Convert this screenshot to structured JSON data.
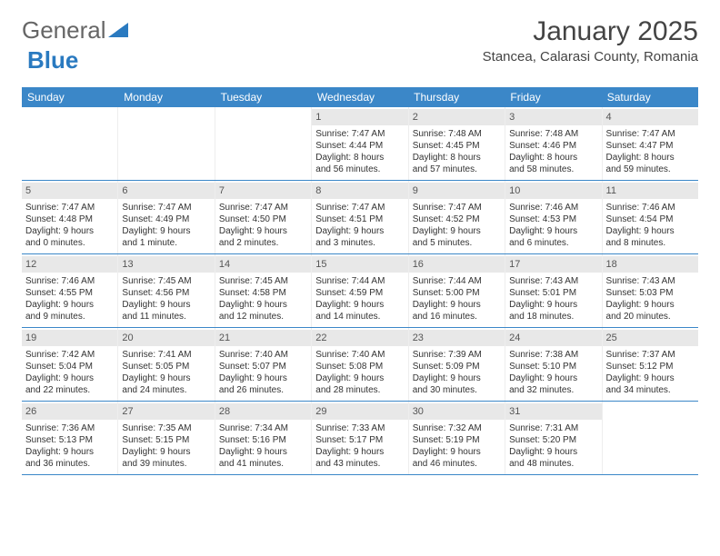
{
  "logo": {
    "text1": "General",
    "text2": "Blue"
  },
  "title": {
    "month": "January 2025",
    "location": "Stancea, Calarasi County, Romania"
  },
  "colors": {
    "header_bg": "#3b87c8",
    "header_text": "#ffffff",
    "date_bg": "#e8e8e8",
    "border": "#3b87c8",
    "logo_blue": "#2a7ac0"
  },
  "day_names": [
    "Sunday",
    "Monday",
    "Tuesday",
    "Wednesday",
    "Thursday",
    "Friday",
    "Saturday"
  ],
  "weeks": [
    [
      {
        "date": "",
        "sunrise": "",
        "sunset": "",
        "daylight1": "",
        "daylight2": ""
      },
      {
        "date": "",
        "sunrise": "",
        "sunset": "",
        "daylight1": "",
        "daylight2": ""
      },
      {
        "date": "",
        "sunrise": "",
        "sunset": "",
        "daylight1": "",
        "daylight2": ""
      },
      {
        "date": "1",
        "sunrise": "Sunrise: 7:47 AM",
        "sunset": "Sunset: 4:44 PM",
        "daylight1": "Daylight: 8 hours",
        "daylight2": "and 56 minutes."
      },
      {
        "date": "2",
        "sunrise": "Sunrise: 7:48 AM",
        "sunset": "Sunset: 4:45 PM",
        "daylight1": "Daylight: 8 hours",
        "daylight2": "and 57 minutes."
      },
      {
        "date": "3",
        "sunrise": "Sunrise: 7:48 AM",
        "sunset": "Sunset: 4:46 PM",
        "daylight1": "Daylight: 8 hours",
        "daylight2": "and 58 minutes."
      },
      {
        "date": "4",
        "sunrise": "Sunrise: 7:47 AM",
        "sunset": "Sunset: 4:47 PM",
        "daylight1": "Daylight: 8 hours",
        "daylight2": "and 59 minutes."
      }
    ],
    [
      {
        "date": "5",
        "sunrise": "Sunrise: 7:47 AM",
        "sunset": "Sunset: 4:48 PM",
        "daylight1": "Daylight: 9 hours",
        "daylight2": "and 0 minutes."
      },
      {
        "date": "6",
        "sunrise": "Sunrise: 7:47 AM",
        "sunset": "Sunset: 4:49 PM",
        "daylight1": "Daylight: 9 hours",
        "daylight2": "and 1 minute."
      },
      {
        "date": "7",
        "sunrise": "Sunrise: 7:47 AM",
        "sunset": "Sunset: 4:50 PM",
        "daylight1": "Daylight: 9 hours",
        "daylight2": "and 2 minutes."
      },
      {
        "date": "8",
        "sunrise": "Sunrise: 7:47 AM",
        "sunset": "Sunset: 4:51 PM",
        "daylight1": "Daylight: 9 hours",
        "daylight2": "and 3 minutes."
      },
      {
        "date": "9",
        "sunrise": "Sunrise: 7:47 AM",
        "sunset": "Sunset: 4:52 PM",
        "daylight1": "Daylight: 9 hours",
        "daylight2": "and 5 minutes."
      },
      {
        "date": "10",
        "sunrise": "Sunrise: 7:46 AM",
        "sunset": "Sunset: 4:53 PM",
        "daylight1": "Daylight: 9 hours",
        "daylight2": "and 6 minutes."
      },
      {
        "date": "11",
        "sunrise": "Sunrise: 7:46 AM",
        "sunset": "Sunset: 4:54 PM",
        "daylight1": "Daylight: 9 hours",
        "daylight2": "and 8 minutes."
      }
    ],
    [
      {
        "date": "12",
        "sunrise": "Sunrise: 7:46 AM",
        "sunset": "Sunset: 4:55 PM",
        "daylight1": "Daylight: 9 hours",
        "daylight2": "and 9 minutes."
      },
      {
        "date": "13",
        "sunrise": "Sunrise: 7:45 AM",
        "sunset": "Sunset: 4:56 PM",
        "daylight1": "Daylight: 9 hours",
        "daylight2": "and 11 minutes."
      },
      {
        "date": "14",
        "sunrise": "Sunrise: 7:45 AM",
        "sunset": "Sunset: 4:58 PM",
        "daylight1": "Daylight: 9 hours",
        "daylight2": "and 12 minutes."
      },
      {
        "date": "15",
        "sunrise": "Sunrise: 7:44 AM",
        "sunset": "Sunset: 4:59 PM",
        "daylight1": "Daylight: 9 hours",
        "daylight2": "and 14 minutes."
      },
      {
        "date": "16",
        "sunrise": "Sunrise: 7:44 AM",
        "sunset": "Sunset: 5:00 PM",
        "daylight1": "Daylight: 9 hours",
        "daylight2": "and 16 minutes."
      },
      {
        "date": "17",
        "sunrise": "Sunrise: 7:43 AM",
        "sunset": "Sunset: 5:01 PM",
        "daylight1": "Daylight: 9 hours",
        "daylight2": "and 18 minutes."
      },
      {
        "date": "18",
        "sunrise": "Sunrise: 7:43 AM",
        "sunset": "Sunset: 5:03 PM",
        "daylight1": "Daylight: 9 hours",
        "daylight2": "and 20 minutes."
      }
    ],
    [
      {
        "date": "19",
        "sunrise": "Sunrise: 7:42 AM",
        "sunset": "Sunset: 5:04 PM",
        "daylight1": "Daylight: 9 hours",
        "daylight2": "and 22 minutes."
      },
      {
        "date": "20",
        "sunrise": "Sunrise: 7:41 AM",
        "sunset": "Sunset: 5:05 PM",
        "daylight1": "Daylight: 9 hours",
        "daylight2": "and 24 minutes."
      },
      {
        "date": "21",
        "sunrise": "Sunrise: 7:40 AM",
        "sunset": "Sunset: 5:07 PM",
        "daylight1": "Daylight: 9 hours",
        "daylight2": "and 26 minutes."
      },
      {
        "date": "22",
        "sunrise": "Sunrise: 7:40 AM",
        "sunset": "Sunset: 5:08 PM",
        "daylight1": "Daylight: 9 hours",
        "daylight2": "and 28 minutes."
      },
      {
        "date": "23",
        "sunrise": "Sunrise: 7:39 AM",
        "sunset": "Sunset: 5:09 PM",
        "daylight1": "Daylight: 9 hours",
        "daylight2": "and 30 minutes."
      },
      {
        "date": "24",
        "sunrise": "Sunrise: 7:38 AM",
        "sunset": "Sunset: 5:10 PM",
        "daylight1": "Daylight: 9 hours",
        "daylight2": "and 32 minutes."
      },
      {
        "date": "25",
        "sunrise": "Sunrise: 7:37 AM",
        "sunset": "Sunset: 5:12 PM",
        "daylight1": "Daylight: 9 hours",
        "daylight2": "and 34 minutes."
      }
    ],
    [
      {
        "date": "26",
        "sunrise": "Sunrise: 7:36 AM",
        "sunset": "Sunset: 5:13 PM",
        "daylight1": "Daylight: 9 hours",
        "daylight2": "and 36 minutes."
      },
      {
        "date": "27",
        "sunrise": "Sunrise: 7:35 AM",
        "sunset": "Sunset: 5:15 PM",
        "daylight1": "Daylight: 9 hours",
        "daylight2": "and 39 minutes."
      },
      {
        "date": "28",
        "sunrise": "Sunrise: 7:34 AM",
        "sunset": "Sunset: 5:16 PM",
        "daylight1": "Daylight: 9 hours",
        "daylight2": "and 41 minutes."
      },
      {
        "date": "29",
        "sunrise": "Sunrise: 7:33 AM",
        "sunset": "Sunset: 5:17 PM",
        "daylight1": "Daylight: 9 hours",
        "daylight2": "and 43 minutes."
      },
      {
        "date": "30",
        "sunrise": "Sunrise: 7:32 AM",
        "sunset": "Sunset: 5:19 PM",
        "daylight1": "Daylight: 9 hours",
        "daylight2": "and 46 minutes."
      },
      {
        "date": "31",
        "sunrise": "Sunrise: 7:31 AM",
        "sunset": "Sunset: 5:20 PM",
        "daylight1": "Daylight: 9 hours",
        "daylight2": "and 48 minutes."
      },
      {
        "date": "",
        "sunrise": "",
        "sunset": "",
        "daylight1": "",
        "daylight2": ""
      }
    ]
  ]
}
